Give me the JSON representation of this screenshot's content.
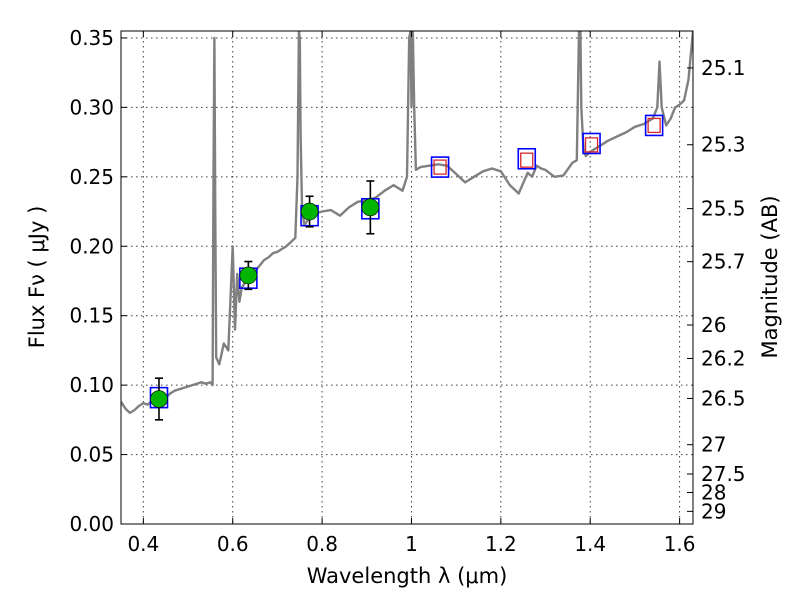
{
  "chart_data": {
    "type": "scatter",
    "xlabel": "Wavelength  λ (μm)",
    "ylabel": "Flux  Fν  ( μJy )",
    "y2label": "Magnitude (AB)",
    "xlim": [
      0.35,
      1.63
    ],
    "ylim": [
      0.0,
      0.355
    ],
    "grid": true,
    "x_ticks": [
      0.4,
      0.6,
      0.8,
      1.0,
      1.2,
      1.4,
      1.6
    ],
    "x_tick_labels": [
      "0.4",
      "0.6",
      "0.8",
      "1",
      "1.2",
      "1.4",
      "1.6"
    ],
    "y_ticks": [
      0.0,
      0.05,
      0.1,
      0.15,
      0.2,
      0.25,
      0.3,
      0.35
    ],
    "y_tick_labels": [
      "0.00",
      "0.05",
      "0.10",
      "0.15",
      "0.20",
      "0.25",
      "0.30",
      "0.35"
    ],
    "magnitude_ticks": [
      {
        "label": "25.1",
        "flux": 0.3284
      },
      {
        "label": "25.3",
        "flux": 0.2731
      },
      {
        "label": "25.5",
        "flux": 0.2271
      },
      {
        "label": "25.7",
        "flux": 0.1889
      },
      {
        "label": "26",
        "flux": 0.1433
      },
      {
        "label": "26.2",
        "flux": 0.1192
      },
      {
        "label": "26.5",
        "flux": 0.0904
      },
      {
        "label": "27",
        "flux": 0.0571
      },
      {
        "label": "27.5",
        "flux": 0.036
      },
      {
        "label": "28",
        "flux": 0.0227
      },
      {
        "label": "29",
        "flux": 0.0091
      }
    ],
    "series": [
      {
        "kind": "line",
        "color": "#808080",
        "x": [
          0.35,
          0.36,
          0.37,
          0.38,
          0.39,
          0.4,
          0.41,
          0.42,
          0.43,
          0.44,
          0.45,
          0.46,
          0.47,
          0.48,
          0.49,
          0.5,
          0.51,
          0.52,
          0.53,
          0.54,
          0.55,
          0.555,
          0.557,
          0.559,
          0.561,
          0.563,
          0.57,
          0.58,
          0.59,
          0.6,
          0.605,
          0.61,
          0.615,
          0.62,
          0.63,
          0.64,
          0.65,
          0.66,
          0.67,
          0.68,
          0.69,
          0.7,
          0.71,
          0.72,
          0.73,
          0.74,
          0.745,
          0.748,
          0.75,
          0.752,
          0.755,
          0.76,
          0.77,
          0.78,
          0.79,
          0.8,
          0.82,
          0.84,
          0.86,
          0.88,
          0.9,
          0.92,
          0.94,
          0.96,
          0.98,
          0.99,
          0.995,
          0.998,
          1.0,
          1.003,
          1.006,
          1.01,
          1.02,
          1.04,
          1.06,
          1.08,
          1.1,
          1.12,
          1.14,
          1.16,
          1.18,
          1.2,
          1.22,
          1.24,
          1.26,
          1.27,
          1.28,
          1.29,
          1.3,
          1.32,
          1.34,
          1.36,
          1.37,
          1.375,
          1.378,
          1.38,
          1.385,
          1.39,
          1.4,
          1.42,
          1.44,
          1.46,
          1.48,
          1.5,
          1.52,
          1.54,
          1.55,
          1.555,
          1.56,
          1.57,
          1.58,
          1.59,
          1.6,
          1.61,
          1.62,
          1.63
        ],
        "y": [
          0.088,
          0.083,
          0.08,
          0.082,
          0.085,
          0.087,
          0.086,
          0.089,
          0.092,
          0.093,
          0.091,
          0.094,
          0.096,
          0.097,
          0.098,
          0.099,
          0.1,
          0.101,
          0.102,
          0.101,
          0.102,
          0.1,
          0.25,
          0.35,
          0.22,
          0.12,
          0.115,
          0.13,
          0.125,
          0.2,
          0.14,
          0.18,
          0.16,
          0.17,
          0.175,
          0.178,
          0.182,
          0.186,
          0.19,
          0.192,
          0.195,
          0.196,
          0.198,
          0.2,
          0.203,
          0.206,
          0.25,
          0.355,
          0.35,
          0.28,
          0.23,
          0.215,
          0.22,
          0.222,
          0.224,
          0.225,
          0.226,
          0.222,
          0.228,
          0.232,
          0.233,
          0.235,
          0.24,
          0.244,
          0.24,
          0.25,
          0.35,
          0.355,
          0.3,
          0.355,
          0.3,
          0.255,
          0.257,
          0.258,
          0.259,
          0.258,
          0.252,
          0.246,
          0.25,
          0.254,
          0.256,
          0.254,
          0.244,
          0.238,
          0.253,
          0.25,
          0.258,
          0.256,
          0.255,
          0.25,
          0.251,
          0.26,
          0.262,
          0.355,
          0.355,
          0.3,
          0.27,
          0.265,
          0.268,
          0.272,
          0.276,
          0.279,
          0.282,
          0.286,
          0.288,
          0.292,
          0.3,
          0.333,
          0.3,
          0.287,
          0.292,
          0.3,
          0.302,
          0.305,
          0.32,
          0.355
        ]
      },
      {
        "kind": "model_box_blue",
        "color": "#0000ff",
        "x": [
          0.435,
          0.635,
          0.772,
          0.908,
          1.064,
          1.258,
          1.403,
          1.543
        ],
        "y": [
          0.091,
          0.177,
          0.222,
          0.227,
          0.257,
          0.263,
          0.274,
          0.287
        ]
      },
      {
        "kind": "model_box_red",
        "color": "#d62728",
        "x": [
          1.064,
          1.258,
          1.403,
          1.543
        ],
        "y": [
          0.257,
          0.262,
          0.273,
          0.287
        ]
      },
      {
        "kind": "observed",
        "color": "#00b400",
        "x": [
          0.435,
          0.635,
          0.772,
          0.908
        ],
        "y": [
          0.09,
          0.179,
          0.225,
          0.228
        ],
        "err": [
          0.015,
          0.01,
          0.011,
          0.019
        ]
      }
    ]
  }
}
